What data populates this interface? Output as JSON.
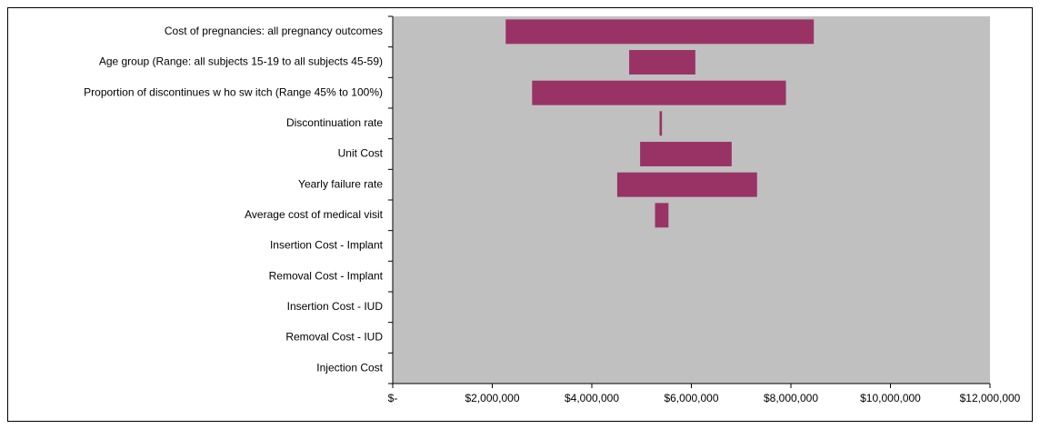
{
  "chart_data": {
    "type": "floating-bar",
    "categories": [
      "Cost of pregnancies: all pregnancy outcomes",
      "Age group (Range: all subjects 15-19 to all subjects 45-59)",
      "Proportion of discontinues w ho sw itch (Range 45% to 100%)",
      "Discontinuation rate",
      "Unit Cost",
      "Yearly failure rate",
      "Average cost of medical visit",
      "Insertion Cost - Implant",
      "Removal Cost - Implant",
      "Insertion Cost - IUD",
      "Removal Cost - IUD",
      "Injection Cost"
    ],
    "low": [
      2270000,
      4750000,
      2800000,
      5360000,
      4970000,
      4510000,
      5270000,
      null,
      null,
      null,
      null,
      null
    ],
    "high": [
      8460000,
      6080000,
      7900000,
      5410000,
      6810000,
      7320000,
      5540000,
      null,
      null,
      null,
      null,
      null
    ],
    "color": "#993366",
    "plot_background": "#c0c0c0",
    "xlim": [
      0,
      12000000
    ],
    "xticks": [
      {
        "value": 0,
        "label": "$-"
      },
      {
        "value": 2000000,
        "label": "$2,000,000"
      },
      {
        "value": 4000000,
        "label": "$4,000,000"
      },
      {
        "value": 6000000,
        "label": "$6,000,000"
      },
      {
        "value": 8000000,
        "label": "$8,000,000"
      },
      {
        "value": 10000000,
        "label": "$10,000,000"
      },
      {
        "value": 12000000,
        "label": "$12,000,000"
      }
    ]
  }
}
